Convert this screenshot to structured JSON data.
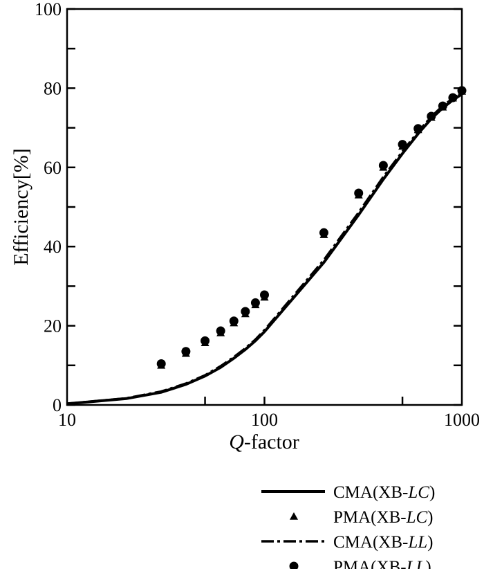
{
  "chart_data": {
    "type": "line",
    "title": "",
    "xlabel_italic": "Q",
    "xlabel_rest": "-factor",
    "ylabel": "Efficiency[%]",
    "xscale": "log",
    "xlim": [
      10,
      1000
    ],
    "ylim": [
      0,
      100
    ],
    "xticks": [
      10,
      100,
      1000
    ],
    "xtick_labels": [
      "10",
      "100",
      "1000"
    ],
    "yticks": [
      0,
      20,
      40,
      60,
      80,
      100
    ],
    "ytick_labels": [
      "0",
      "20",
      "40",
      "60",
      "80",
      "100"
    ],
    "grid": false,
    "legend_placement": "bottom-right, below plot",
    "series": [
      {
        "name": "CMA(XB-LC)",
        "style": "solid line",
        "x": [
          10,
          20,
          30,
          40,
          50,
          60,
          70,
          80,
          90,
          100,
          200,
          300,
          400,
          500,
          600,
          700,
          800,
          900,
          1000
        ],
        "y": [
          0.3,
          1.6,
          3.2,
          5.2,
          7.3,
          9.5,
          11.8,
          14.0,
          16.2,
          18.5,
          36.0,
          48.0,
          57.0,
          63.5,
          68.5,
          72.3,
          75.0,
          77.0,
          78.5
        ]
      },
      {
        "name": "PMA(XB-LC)",
        "style": "triangle markers",
        "x": [
          30,
          40,
          50,
          60,
          70,
          80,
          90,
          100,
          200,
          300,
          400,
          500,
          600,
          700,
          800,
          900,
          1000
        ],
        "y": [
          10.0,
          13.0,
          15.7,
          18.2,
          20.7,
          23.0,
          25.3,
          27.2,
          43.0,
          53.0,
          60.0,
          65.3,
          69.5,
          72.6,
          75.2,
          77.5,
          79.2
        ]
      },
      {
        "name": "CMA(XB-LL)",
        "style": "dash-dot line",
        "x": [
          10,
          20,
          30,
          40,
          50,
          60,
          70,
          80,
          90,
          100,
          200,
          300,
          400,
          500,
          600,
          700,
          800,
          900,
          1000
        ],
        "y": [
          0.3,
          1.7,
          3.4,
          5.4,
          7.5,
          9.8,
          12.1,
          14.3,
          16.5,
          18.9,
          36.6,
          48.6,
          57.6,
          64.0,
          69.0,
          72.8,
          75.5,
          77.4,
          78.8
        ]
      },
      {
        "name": "PMA(XB-LL)",
        "style": "circle markers",
        "x": [
          30,
          40,
          50,
          60,
          70,
          80,
          90,
          100,
          200,
          300,
          400,
          500,
          600,
          700,
          800,
          900,
          1000
        ],
        "y": [
          10.4,
          13.5,
          16.2,
          18.7,
          21.2,
          23.6,
          25.8,
          27.8,
          43.5,
          53.5,
          60.5,
          65.8,
          69.8,
          72.9,
          75.5,
          77.6,
          79.4
        ]
      }
    ],
    "legend": [
      {
        "prefix": "CMA(XB-",
        "italic": "LC",
        "suffix": ")"
      },
      {
        "prefix": "PMA(XB-",
        "italic": "LC",
        "suffix": ")"
      },
      {
        "prefix": "CMA(XB-",
        "italic": "LL",
        "suffix": ")"
      },
      {
        "prefix": "PMA(XB-",
        "italic": "LL",
        "suffix": ")"
      }
    ],
    "colors": {
      "ink": "#000000"
    }
  }
}
